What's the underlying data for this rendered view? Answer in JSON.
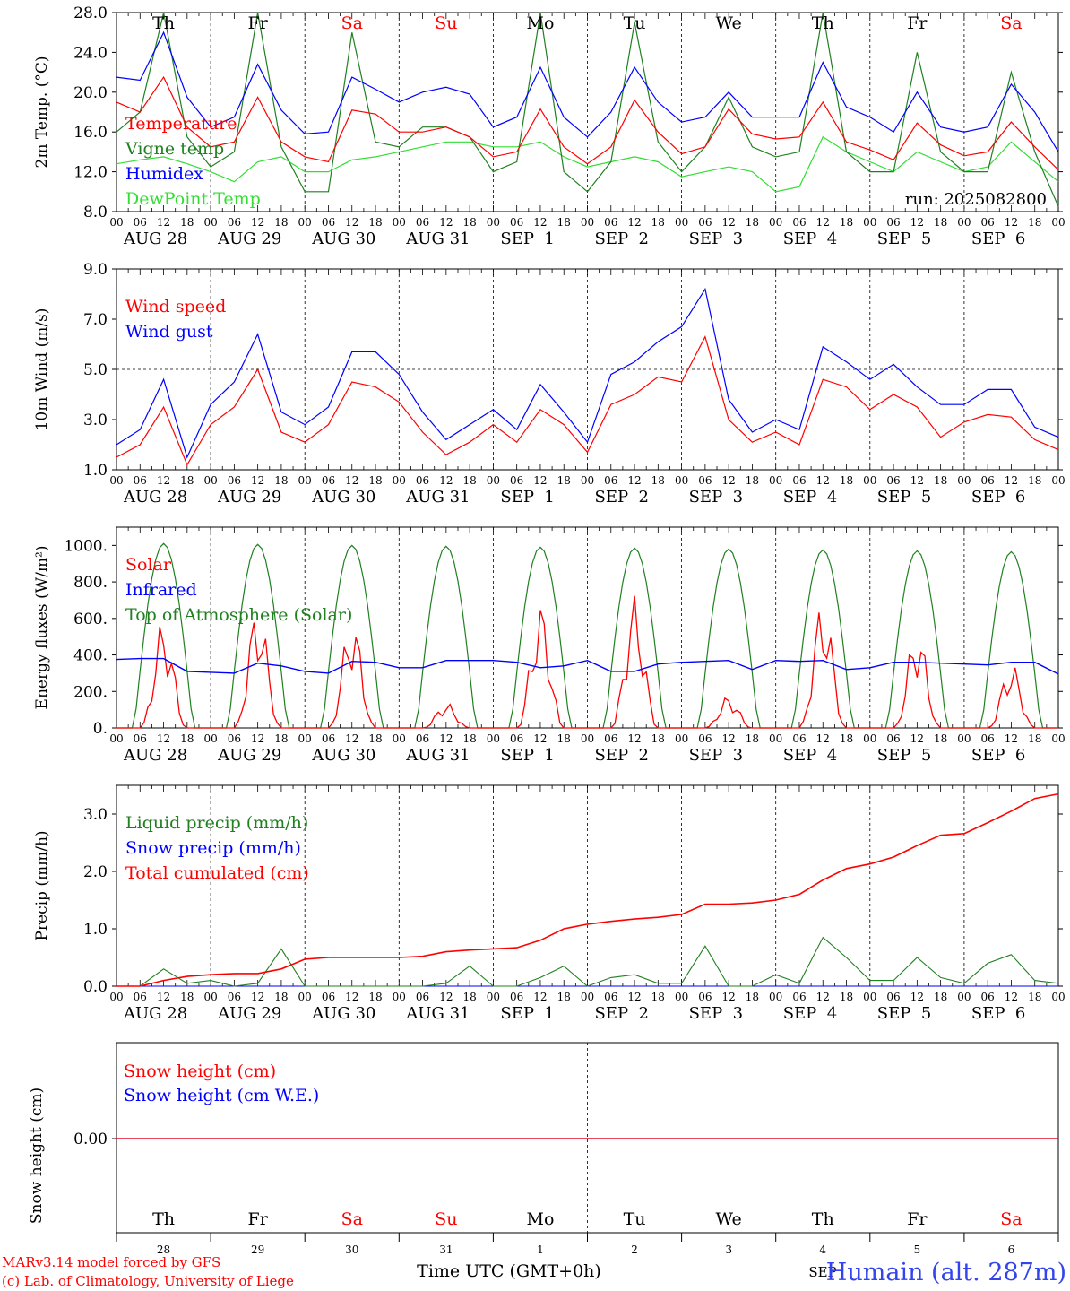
{
  "colors": {
    "red": "#ff0000",
    "green": "#208020",
    "blue": "#0000ff",
    "lightgreen": "#33dd33",
    "black": "#000000",
    "weekend": "#ff0000"
  },
  "x_axis": {
    "hour_labels": [
      "00",
      "06",
      "12",
      "18"
    ],
    "last_label": "00",
    "dates": [
      "AUG 28",
      "AUG 29",
      "AUG 30",
      "AUG 31",
      "SEP  1",
      "SEP  2",
      "SEP  3",
      "SEP  4",
      "SEP  5",
      "SEP  6"
    ],
    "weekdays": [
      "Th",
      "Fr",
      "Sa",
      "Su",
      "Mo",
      "Tu",
      "We",
      "Th",
      "Fr",
      "Sa"
    ],
    "weekday_red": [
      false,
      false,
      true,
      true,
      false,
      false,
      false,
      false,
      false,
      true
    ],
    "day_numbers": [
      "28",
      "29",
      "30",
      "31",
      "1",
      "2",
      "3",
      "4",
      "5",
      "6"
    ],
    "bottom_month_label": "SEP",
    "time_label": "Time UTC (GMT+0h)"
  },
  "footer": {
    "credit_line1": "MARv3.14 model forced by GFS",
    "credit_line2": "(c) Lab. of Climatology, University of Liege",
    "station": "Humain (alt. 287m)"
  },
  "chart_data": [
    {
      "type": "line",
      "ylabel": "2m Temp. (°C)",
      "ylim": [
        8,
        28
      ],
      "yticks": [
        "8.0",
        "12.0",
        "16.0",
        "20.0",
        "24.0",
        "28.0"
      ],
      "annotation": "run: 2025082800",
      "legend": [
        "Temperature",
        "Vigne temp",
        "Humidex",
        "DewPoint Temp"
      ],
      "x_hours_from_start": [
        0,
        6,
        12,
        18,
        24,
        30,
        36,
        42,
        48,
        54,
        60,
        66,
        72,
        78,
        84,
        90,
        96,
        102,
        108,
        114,
        120,
        126,
        132,
        138,
        144,
        150,
        156,
        162,
        168,
        174,
        180,
        186,
        192,
        198,
        204,
        210,
        216,
        222,
        228,
        234,
        240
      ],
      "series": [
        {
          "name": "Temperature",
          "color": "red",
          "values": [
            19,
            18,
            21.5,
            16.5,
            14.5,
            15,
            19.5,
            15,
            13.5,
            13,
            18.2,
            17.8,
            16,
            16,
            16.5,
            15.5,
            13.5,
            14,
            18.3,
            14.5,
            12.8,
            14.5,
            19.2,
            16,
            13.8,
            14.5,
            18.3,
            15.8,
            15.3,
            15.5,
            19,
            15,
            14.2,
            13.2,
            16.9,
            14.7,
            13.6,
            14,
            17,
            14.5,
            12.2
          ]
        },
        {
          "name": "Vigne temp",
          "color": "green",
          "values": [
            16,
            18,
            28,
            15.5,
            12.5,
            14,
            28,
            14.5,
            10,
            10,
            26,
            15,
            14.5,
            16.5,
            16.5,
            15.5,
            12,
            13,
            28,
            12,
            10,
            13,
            27,
            15,
            12,
            14.5,
            19.5,
            14.5,
            13.5,
            14,
            28,
            14,
            12,
            12,
            24,
            14,
            12,
            12,
            22,
            14,
            8.5
          ]
        },
        {
          "name": "Humidex",
          "color": "blue",
          "values": [
            21.5,
            21.2,
            26,
            19.5,
            16.5,
            17.5,
            22.8,
            18.2,
            15.8,
            16,
            21.5,
            20.3,
            19,
            20,
            20.5,
            19.8,
            16.5,
            17.5,
            22.5,
            17.5,
            15.5,
            18,
            22.5,
            19,
            17,
            17.5,
            20,
            17.5,
            17.5,
            17.5,
            23,
            18.5,
            17.5,
            16,
            20,
            16.5,
            16,
            16.5,
            20.8,
            18,
            14
          ]
        },
        {
          "name": "DewPoint Temp",
          "color": "lightgreen",
          "values": [
            12.8,
            13.2,
            13.5,
            12.8,
            12,
            11,
            13,
            13.5,
            12,
            12,
            13.2,
            13.5,
            14,
            14.5,
            15,
            15,
            14.5,
            14.5,
            15,
            13.5,
            12.5,
            13,
            13.5,
            13,
            11.5,
            12,
            12.5,
            12,
            10,
            10.5,
            15.5,
            14,
            13,
            12,
            14,
            13,
            12,
            12.5,
            15,
            13,
            11
          ]
        }
      ]
    },
    {
      "type": "line",
      "ylabel": "10m Wind (m/s)",
      "ylim": [
        1,
        9
      ],
      "yticks": [
        "1.0",
        "3.0",
        "5.0",
        "7.0",
        "9.0"
      ],
      "reference_line": 5,
      "legend": [
        "Wind speed",
        "Wind gust"
      ],
      "x_hours_from_start": [
        0,
        6,
        12,
        18,
        24,
        30,
        36,
        42,
        48,
        54,
        60,
        66,
        72,
        78,
        84,
        90,
        96,
        102,
        108,
        114,
        120,
        126,
        132,
        138,
        144,
        150,
        156,
        162,
        168,
        174,
        180,
        186,
        192,
        198,
        204,
        210,
        216,
        222,
        228,
        234,
        240
      ],
      "series": [
        {
          "name": "Wind speed",
          "color": "red",
          "values": [
            1.5,
            2,
            3.5,
            1.2,
            2.8,
            3.5,
            5,
            2.5,
            2.1,
            2.8,
            4.5,
            4.3,
            3.7,
            2.5,
            1.6,
            2.1,
            2.8,
            2.1,
            3.4,
            2.8,
            1.7,
            3.6,
            4,
            4.7,
            4.5,
            6.3,
            3,
            2.1,
            2.5,
            2,
            4.6,
            4.3,
            3.4,
            4,
            3.5,
            2.3,
            2.9,
            3.2,
            3.1,
            2.2,
            1.8
          ]
        },
        {
          "name": "Wind gust",
          "color": "blue",
          "values": [
            2,
            2.6,
            4.6,
            1.5,
            3.6,
            4.5,
            6.4,
            3.3,
            2.8,
            3.5,
            5.7,
            5.7,
            4.8,
            3.3,
            2.2,
            2.8,
            3.4,
            2.6,
            4.4,
            3.3,
            2.1,
            4.8,
            5.3,
            6.1,
            6.7,
            8.2,
            3.8,
            2.5,
            3,
            2.6,
            5.9,
            5.3,
            4.6,
            5.2,
            4.3,
            3.6,
            3.6,
            4.2,
            4.2,
            2.7,
            2.3
          ]
        }
      ]
    },
    {
      "type": "line",
      "ylabel": "Energy fluxes (W/m²)",
      "ylim": [
        0,
        1100
      ],
      "yticks": [
        "0.",
        "200.",
        "400.",
        "600.",
        "800.",
        "1000."
      ],
      "legend": [
        "Solar",
        "Infrared",
        "Top of Atmosphere (Solar)"
      ],
      "toa_peaks": [
        1010,
        1005,
        1000,
        995,
        990,
        985,
        980,
        975,
        970,
        965
      ],
      "solar_peaks": [
        600,
        680,
        610,
        140,
        690,
        730,
        180,
        710,
        550,
        360
      ],
      "infrared_values": [
        375,
        380,
        380,
        310,
        305,
        300,
        355,
        340,
        310,
        300,
        365,
        360,
        330,
        330,
        370,
        370,
        370,
        360,
        330,
        340,
        370,
        310,
        310,
        350,
        360,
        365,
        370,
        320,
        370,
        365,
        370,
        320,
        330,
        360,
        360,
        355,
        350,
        345,
        360,
        360,
        295
      ]
    },
    {
      "type": "line",
      "ylabel": "Precip (mm/h)",
      "ylim": [
        0,
        3.5
      ],
      "yticks": [
        "0.0",
        "1.0",
        "2.0",
        "3.0"
      ],
      "legend": [
        "Liquid precip (mm/h)",
        "Snow precip (mm/h)",
        "Total cumulated (cm)"
      ],
      "x_hours_from_start": [
        0,
        6,
        12,
        18,
        24,
        30,
        36,
        42,
        48,
        54,
        60,
        66,
        72,
        78,
        84,
        90,
        96,
        102,
        108,
        114,
        120,
        126,
        132,
        138,
        144,
        150,
        156,
        162,
        168,
        174,
        180,
        186,
        192,
        198,
        204,
        210,
        216,
        222,
        228,
        234,
        240
      ],
      "series": [
        {
          "name": "Liquid precip (mm/h)",
          "color": "green",
          "values": [
            0,
            0,
            0.3,
            0.05,
            0.1,
            0,
            0.05,
            0.65,
            0,
            0,
            0,
            0,
            0,
            0,
            0.05,
            0.35,
            0,
            0,
            0.15,
            0.35,
            0,
            0.15,
            0.2,
            0.05,
            0.05,
            0.7,
            0,
            0,
            0.2,
            0.05,
            0.85,
            0.5,
            0.1,
            0.1,
            0.5,
            0.15,
            0.05,
            0.4,
            0.55,
            0.1,
            0.05
          ]
        },
        {
          "name": "Snow precip (mm/h)",
          "color": "blue",
          "values": [
            0,
            0,
            0,
            0,
            0,
            0,
            0,
            0,
            0,
            0,
            0,
            0,
            0,
            0,
            0,
            0,
            0,
            0,
            0,
            0,
            0,
            0,
            0,
            0,
            0,
            0,
            0,
            0,
            0,
            0,
            0,
            0,
            0,
            0,
            0,
            0,
            0,
            0,
            0,
            0,
            0
          ]
        },
        {
          "name": "Total cumulated (cm)",
          "color": "red",
          "values": [
            0,
            0,
            0.1,
            0.17,
            0.2,
            0.22,
            0.22,
            0.3,
            0.47,
            0.5,
            0.5,
            0.5,
            0.5,
            0.52,
            0.6,
            0.63,
            0.65,
            0.67,
            0.8,
            1.0,
            1.08,
            1.13,
            1.17,
            1.2,
            1.25,
            1.43,
            1.43,
            1.45,
            1.5,
            1.6,
            1.85,
            2.05,
            2.13,
            2.25,
            2.45,
            2.63,
            2.66,
            2.85,
            3.05,
            3.27,
            3.35
          ]
        }
      ]
    },
    {
      "type": "line",
      "ylabel": "Snow height (cm)",
      "ylim": [
        -1,
        1
      ],
      "yticks": [
        "0.00"
      ],
      "legend": [
        "Snow height (cm)",
        "Snow height (cm W.E.)"
      ],
      "series": [
        {
          "name": "Snow height (cm)",
          "color": "red",
          "values": [
            0,
            0
          ]
        },
        {
          "name": "Snow height (cm W.E.)",
          "color": "blue",
          "values": [
            0,
            0
          ]
        }
      ]
    }
  ]
}
